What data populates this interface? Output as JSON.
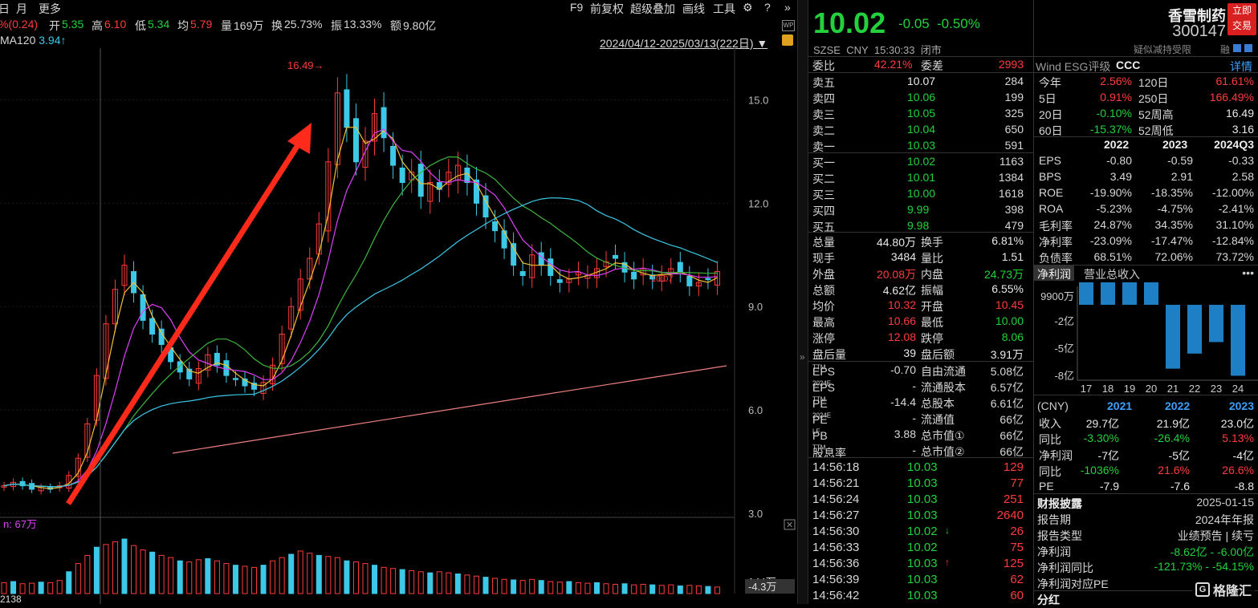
{
  "toolbar": {
    "period_day": "日",
    "period_month": "月",
    "more": "更多",
    "f9": "F9",
    "fuquan": "前复权",
    "overlay": "超级叠加",
    "draw": "画线",
    "tools": "工具"
  },
  "quote_line": {
    "change": "%(0.24)",
    "open_label": "开",
    "open": "5.35",
    "high_label": "高",
    "high": "6.10",
    "low_label": "低",
    "low": "5.34",
    "avg_label": "均",
    "avg": "5.79",
    "vol_label": "量",
    "vol": "169万",
    "turnover_label": "换",
    "turnover": "25.73%",
    "amplitude_label": "振",
    "amplitude": "13.33%",
    "amount_label": "额",
    "amount": "9.80亿"
  },
  "indicator": {
    "ma120_label": "MA120",
    "ma120_value": "3.94↑"
  },
  "date_range": "2024/04/12-2025/03/13(222日)",
  "chart_data": [
    {
      "type": "candlestick",
      "title": "",
      "date_range": "2024/04/12-2025/03/13(222日)",
      "y_ticks": [
        15.0,
        12.0,
        9.0,
        6.0,
        3.0
      ],
      "ylim": [
        3.0,
        16.5
      ],
      "annotations": [
        {
          "text": "16.49→",
          "value": 16.49
        }
      ],
      "mid_label": "10.07",
      "series_close": [
        3.8,
        3.9,
        3.8,
        3.7,
        3.75,
        3.7,
        3.8,
        4.1,
        4.6,
        5.6,
        7.0,
        8.5,
        9.5,
        10.2,
        9.4,
        8.6,
        8.2,
        7.9,
        7.4,
        7.1,
        6.9,
        7.2,
        7.6,
        7.3,
        7.0,
        6.9,
        6.7,
        6.6,
        6.8,
        7.3,
        8.2,
        9.0,
        9.8,
        10.4,
        11.4,
        13.2,
        15.2,
        14.2,
        13.2,
        13.8,
        14.6,
        13.9,
        13.1,
        12.6,
        12.9,
        12.2,
        12.6,
        12.4,
        12.9,
        13.1,
        12.6,
        12.0,
        11.6,
        11.2,
        10.7,
        10.2,
        9.9,
        10.5,
        10.2,
        9.9,
        9.7,
        9.8,
        10.0,
        9.9,
        10.1,
        10.3,
        10.4,
        10.0,
        9.8,
        10.1,
        9.8,
        9.9,
        10.1,
        10.0,
        9.6,
        9.7,
        9.8,
        10.02
      ],
      "ma_lines": [
        "yellow",
        "magenta",
        "green",
        "cyan",
        "pink"
      ],
      "x_axis_visible": false
    },
    {
      "type": "bar",
      "title": "",
      "label": "67万",
      "y_ticks_text": [
        "144万"
      ],
      "current_label": "-4.3万",
      "bottom_left": "2138",
      "values": [
        20,
        22,
        18,
        19,
        21,
        20,
        24,
        40,
        55,
        70,
        85,
        90,
        95,
        100,
        88,
        80,
        76,
        70,
        66,
        60,
        58,
        62,
        64,
        60,
        55,
        52,
        50,
        48,
        52,
        60,
        66,
        72,
        78,
        74,
        70,
        68,
        66,
        60,
        58,
        55,
        52,
        48,
        46,
        44,
        42,
        40,
        38,
        40,
        38,
        36,
        34,
        32,
        30,
        28,
        26,
        25,
        24,
        26,
        24,
        22,
        21,
        22,
        20,
        19,
        20,
        18,
        17,
        18,
        16,
        17,
        16,
        15,
        16,
        14,
        15,
        14,
        13,
        12
      ]
    },
    {
      "type": "bar",
      "title": "",
      "tab_active": "净利润",
      "tab_other": "营业总收入",
      "categories": [
        "17",
        "18",
        "19",
        "20",
        "21",
        "22",
        "23",
        "24"
      ],
      "values": [
        9900,
        9900,
        9900,
        9900,
        -72000,
        -55000,
        -42000,
        -80000
      ],
      "y_ticks_text": [
        "9900万",
        "-2亿",
        "-5亿",
        "-8亿"
      ]
    }
  ],
  "header": {
    "price": "10.02",
    "change": "-0.05",
    "change_pct": "-0.50%",
    "exchange": "SZSE",
    "currency": "CNY",
    "time": "15:30:33",
    "status": "闭市",
    "name": "香雪制药",
    "code": "300147",
    "buy_btn_1": "立即",
    "buy_btn_2": "交易",
    "note": "疑似减持受限"
  },
  "order": {
    "ratio_label": "委比",
    "ratio": "42.21%",
    "diff_label": "委差",
    "diff": "2993",
    "asks": [
      {
        "label": "卖五",
        "price": "10.07",
        "vol": "284"
      },
      {
        "label": "卖四",
        "price": "10.06",
        "vol": "199"
      },
      {
        "label": "卖三",
        "price": "10.05",
        "vol": "325"
      },
      {
        "label": "卖二",
        "price": "10.04",
        "vol": "650"
      },
      {
        "label": "卖一",
        "price": "10.03",
        "vol": "591"
      }
    ],
    "bids": [
      {
        "label": "买一",
        "price": "10.02",
        "vol": "1163"
      },
      {
        "label": "买二",
        "price": "10.01",
        "vol": "1384"
      },
      {
        "label": "买三",
        "price": "10.00",
        "vol": "1618"
      },
      {
        "label": "买四",
        "price": "9.99",
        "vol": "398"
      },
      {
        "label": "买五",
        "price": "9.98",
        "vol": "479"
      }
    ]
  },
  "stats": [
    {
      "l1": "总量",
      "v1": "44.80万",
      "l2": "换手",
      "v2": "6.81%"
    },
    {
      "l1": "现手",
      "v1": "3484",
      "l2": "量比",
      "v2": "1.51"
    },
    {
      "l1": "外盘",
      "v1": "20.08万",
      "l2": "内盘",
      "v2": "24.73万"
    },
    {
      "l1": "总额",
      "v1": "4.62亿",
      "l2": "振幅",
      "v2": "6.55%"
    },
    {
      "l1": "均价",
      "v1": "10.32",
      "l2": "开盘",
      "v2": "10.45"
    },
    {
      "l1": "最高",
      "v1": "10.66",
      "l2": "最低",
      "v2": "10.00"
    },
    {
      "l1": "涨停",
      "v1": "12.08",
      "l2": "跌停",
      "v2": "8.06"
    },
    {
      "l1": "盘后量",
      "v1": "39",
      "l2": "盘后额",
      "v2": "3.91万"
    }
  ],
  "valuation": [
    {
      "l1": "EPS",
      "s1": "TTM",
      "v1": "-0.70",
      "l2": "自由流通",
      "v2": "5.08亿"
    },
    {
      "l1": "EPS",
      "s1": "2024E",
      "v1": "-",
      "l2": "流通股本",
      "v2": "6.57亿"
    },
    {
      "l1": "PE",
      "s1": "TTM",
      "v1": "-14.4",
      "l2": "总股本",
      "v2": "6.61亿"
    },
    {
      "l1": "PE",
      "s1": "2024E",
      "v1": "-",
      "l2": "流通值",
      "v2": "66亿"
    },
    {
      "l1": "PB",
      "s1": "LF",
      "v1": "3.88",
      "l2": "总市值①",
      "v2": "66亿"
    },
    {
      "l1": "股息率",
      "s1": "TTM",
      "v1": "-",
      "l2": "总市值②",
      "v2": "66亿"
    }
  ],
  "ticks": [
    {
      "t": "14:56:18",
      "p": "10.03",
      "v": "129",
      "arrow": ""
    },
    {
      "t": "14:56:21",
      "p": "10.03",
      "v": "77",
      "arrow": ""
    },
    {
      "t": "14:56:24",
      "p": "10.03",
      "v": "251",
      "arrow": ""
    },
    {
      "t": "14:56:27",
      "p": "10.03",
      "v": "2640",
      "arrow": ""
    },
    {
      "t": "14:56:30",
      "p": "10.02",
      "v": "26",
      "arrow": "↓"
    },
    {
      "t": "14:56:33",
      "p": "10.02",
      "v": "75",
      "arrow": ""
    },
    {
      "t": "14:56:36",
      "p": "10.03",
      "v": "125",
      "arrow": "↑"
    },
    {
      "t": "14:56:39",
      "p": "10.03",
      "v": "62",
      "arrow": ""
    },
    {
      "t": "14:56:42",
      "p": "10.03",
      "v": "60",
      "arrow": ""
    }
  ],
  "fund": {
    "esg_label": "Wind ESG评级",
    "esg_value": "CCC",
    "detail": "详情",
    "perf": [
      {
        "l1": "今年",
        "v1": "2.56%",
        "l2": "120日",
        "v2": "61.61%"
      },
      {
        "l1": "5日",
        "v1": "0.91%",
        "l2": "250日",
        "v2": "166.49%"
      },
      {
        "l1": "20日",
        "v1": "-0.10%",
        "l2": "52周高",
        "v2": "16.49"
      },
      {
        "l1": "60日",
        "v1": "-15.37%",
        "l2": "52周低",
        "v2": "3.16"
      }
    ],
    "years": [
      "2022",
      "2023",
      "2024Q3"
    ],
    "metrics": [
      {
        "l": "EPS",
        "a": "-0.80",
        "b": "-0.59",
        "c": "-0.33"
      },
      {
        "l": "BPS",
        "a": "3.49",
        "b": "2.91",
        "c": "2.58"
      },
      {
        "l": "ROE",
        "a": "-19.90%",
        "b": "-18.35%",
        "c": "-12.00%"
      },
      {
        "l": "ROA",
        "a": "-5.23%",
        "b": "-4.75%",
        "c": "-2.41%"
      },
      {
        "l": "毛利率",
        "a": "24.87%",
        "b": "34.35%",
        "c": "31.10%"
      },
      {
        "l": "净利率",
        "a": "-23.09%",
        "b": "-17.47%",
        "c": "-12.84%"
      },
      {
        "l": "负债率",
        "a": "68.51%",
        "b": "72.06%",
        "c": "73.72%"
      }
    ],
    "tab_active": "净利润",
    "tab_other": "营业总收入",
    "annual_currency": "(CNY)",
    "annual_years": [
      "2021",
      "2022",
      "2023"
    ],
    "annual": [
      {
        "l": "收入",
        "a": "29.7亿",
        "b": "21.9亿",
        "c": "23.0亿"
      },
      {
        "l": "同比",
        "a": "-3.30%",
        "b": "-26.4%",
        "c": "5.13%"
      },
      {
        "l": "净利润",
        "a": "-7亿",
        "b": "-5亿",
        "c": "-4亿"
      },
      {
        "l": "同比",
        "a": "-1036%",
        "b": "21.6%",
        "c": "26.6%"
      },
      {
        "l": "PE",
        "a": "-7.9",
        "b": "-7.6",
        "c": "-8.8"
      }
    ],
    "report_title": "财报披露",
    "report_date": "2025-01-15",
    "report_period_label": "报告期",
    "report_period": "2024年年报",
    "report_type_label": "报告类型",
    "report_type": "业绩预告 | 续亏",
    "np_label": "净利润",
    "np_value": "-8.62亿 - -6.00亿",
    "npy_label": "净利润同比",
    "npy_value": "-121.73% - -54.15%",
    "npe_label": "净利润对应PE",
    "dividend_label": "分红",
    "watermark": "格隆汇"
  },
  "colors": {
    "up": "#ff3b3b",
    "down": "#22d13c",
    "candle_down": "#3cc8e6",
    "arrow": "#ff2a1a",
    "bar": "#1e7fc4"
  }
}
